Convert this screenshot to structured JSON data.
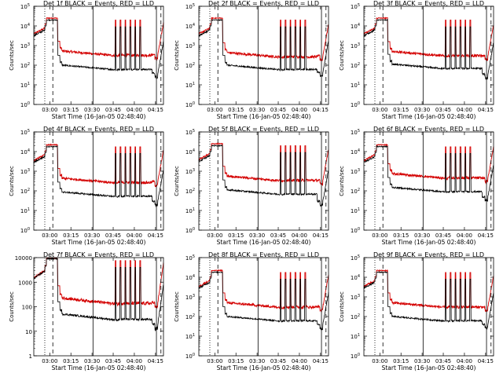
{
  "figure": {
    "title_template": "BLACK = Events, RED = LLD",
    "xlabel": "Start Time (16-Jan-05 02:48:40)",
    "ylabel": "Counts/sec",
    "x_ticks": [
      "03:00",
      "03:15",
      "03:30",
      "03:45",
      "04:00",
      "04:15"
    ],
    "colors": {
      "events": "#000000",
      "lld": "#d40000",
      "axes": "#000000",
      "background": "#ffffff"
    }
  },
  "chart_data": [
    {
      "type": "line",
      "title": "Det 1f BLACK = Events, RED = LLD",
      "xlabel": "Start Time (16-Jan-05 02:48:40)",
      "ylabel": "Counts/sec",
      "x_ticks": [
        "03:00",
        "03:15",
        "03:30",
        "03:45",
        "04:00",
        "04:15"
      ],
      "y_scale": "log",
      "ylim": [
        1,
        100000
      ],
      "y_ticks": [
        "10^0",
        "10^1",
        "10^2",
        "10^3",
        "10^4",
        "10^5"
      ],
      "series": [
        {
          "key": "events",
          "color": "#000000",
          "baseline": 80,
          "floor": 40,
          "peak": 20000
        },
        {
          "key": "lld",
          "color": "#d40000",
          "baseline": 420,
          "floor": 350,
          "peak": 25000
        }
      ]
    },
    {
      "type": "line",
      "title": "Det 2f BLACK = Events, RED = LLD",
      "xlabel": "Start Time (16-Jan-05 02:48:40)",
      "ylabel": "Counts/sec",
      "x_ticks": [
        "03:00",
        "03:15",
        "03:30",
        "03:45",
        "04:00",
        "04:15"
      ],
      "y_scale": "log",
      "ylim": [
        1,
        100000
      ],
      "y_ticks": [
        "10^0",
        "10^1",
        "10^2",
        "10^3",
        "10^4",
        "10^5"
      ],
      "series": [
        {
          "key": "events",
          "color": "#000000",
          "baseline": 80,
          "floor": 45,
          "peak": 20000
        },
        {
          "key": "lld",
          "color": "#d40000",
          "baseline": 350,
          "floor": 300,
          "peak": 25000
        }
      ]
    },
    {
      "type": "line",
      "title": "Det 3f BLACK = Events, RED = LLD",
      "xlabel": "Start Time (16-Jan-05 02:48:40)",
      "ylabel": "Counts/sec",
      "x_ticks": [
        "03:00",
        "03:15",
        "03:30",
        "03:45",
        "04:00",
        "04:15"
      ],
      "y_scale": "log",
      "ylim": [
        1,
        100000
      ],
      "y_ticks": [
        "10^0",
        "10^1",
        "10^2",
        "10^3",
        "10^4",
        "10^5"
      ],
      "series": [
        {
          "key": "events",
          "color": "#000000",
          "baseline": 90,
          "floor": 35,
          "peak": 20000
        },
        {
          "key": "lld",
          "color": "#d40000",
          "baseline": 400,
          "floor": 300,
          "peak": 25000
        }
      ]
    },
    {
      "type": "line",
      "title": "Det 4f BLACK = Events, RED = LLD",
      "xlabel": "Start Time (16-Jan-05 02:48:40)",
      "ylabel": "Counts/sec",
      "x_ticks": [
        "03:00",
        "03:15",
        "03:30",
        "03:45",
        "04:00",
        "04:15"
      ],
      "y_scale": "log",
      "ylim": [
        1,
        100000
      ],
      "y_ticks": [
        "10^0",
        "10^1",
        "10^2",
        "10^3",
        "10^4",
        "10^5"
      ],
      "series": [
        {
          "key": "events",
          "color": "#000000",
          "baseline": 70,
          "floor": 30,
          "peak": 18000
        },
        {
          "key": "lld",
          "color": "#d40000",
          "baseline": 350,
          "floor": 300,
          "peak": 22000
        }
      ]
    },
    {
      "type": "line",
      "title": "Det 5f BLACK = Events, RED = LLD",
      "xlabel": "Start Time (16-Jan-05 02:48:40)",
      "ylabel": "Counts/sec",
      "x_ticks": [
        "03:00",
        "03:15",
        "03:30",
        "03:45",
        "04:00",
        "04:15"
      ],
      "y_scale": "log",
      "ylim": [
        1,
        100000
      ],
      "y_ticks": [
        "10^0",
        "10^1",
        "10^2",
        "10^3",
        "10^4",
        "10^5"
      ],
      "series": [
        {
          "key": "events",
          "color": "#000000",
          "baseline": 90,
          "floor": 30,
          "peak": 20000
        },
        {
          "key": "lld",
          "color": "#d40000",
          "baseline": 450,
          "floor": 350,
          "peak": 25000
        }
      ]
    },
    {
      "type": "line",
      "title": "Det 6f BLACK = Events, RED = LLD",
      "xlabel": "Start Time (16-Jan-05 02:48:40)",
      "ylabel": "Counts/sec",
      "x_ticks": [
        "03:00",
        "03:15",
        "03:30",
        "03:45",
        "04:00",
        "04:15"
      ],
      "y_scale": "log",
      "ylim": [
        1,
        100000
      ],
      "y_ticks": [
        "10^0",
        "10^1",
        "10^2",
        "10^3",
        "10^4",
        "10^5"
      ],
      "series": [
        {
          "key": "events",
          "color": "#000000",
          "baseline": 120,
          "floor": 50,
          "peak": 18000
        },
        {
          "key": "lld",
          "color": "#d40000",
          "baseline": 600,
          "floor": 450,
          "peak": 22000
        }
      ]
    },
    {
      "type": "line",
      "title": "Det 7f BLACK = Events, RED = LLD",
      "xlabel": "Start Time (16-Jan-05 02:48:40)",
      "ylabel": "Counts/sec",
      "x_ticks": [
        "03:00",
        "03:15",
        "03:30",
        "03:45",
        "04:00",
        "04:15"
      ],
      "y_scale": "log",
      "ylim": [
        1,
        10000
      ],
      "y_ticks": [
        "1",
        "10",
        "100",
        "1000",
        "10000"
      ],
      "series": [
        {
          "key": "events",
          "color": "#000000",
          "baseline": 40,
          "floor": 20,
          "peak": 9000
        },
        {
          "key": "lld",
          "color": "#d40000",
          "baseline": 180,
          "floor": 150,
          "peak": 9500
        }
      ]
    },
    {
      "type": "line",
      "title": "Det 8f BLACK = Events, RED = LLD",
      "xlabel": "Start Time (16-Jan-05 02:48:40)",
      "ylabel": "Counts/sec",
      "x_ticks": [
        "03:00",
        "03:15",
        "03:30",
        "03:45",
        "04:00",
        "04:15"
      ],
      "y_scale": "log",
      "ylim": [
        1,
        100000
      ],
      "y_ticks": [
        "10^0",
        "10^1",
        "10^2",
        "10^3",
        "10^4",
        "10^5"
      ],
      "series": [
        {
          "key": "events",
          "color": "#000000",
          "baseline": 80,
          "floor": 40,
          "peak": 18000
        },
        {
          "key": "lld",
          "color": "#d40000",
          "baseline": 400,
          "floor": 320,
          "peak": 22000
        }
      ]
    },
    {
      "type": "line",
      "title": "Det 9f BLACK = Events, RED = LLD",
      "xlabel": "Start Time (16-Jan-05 02:48:40)",
      "ylabel": "Counts/sec",
      "x_ticks": [
        "03:00",
        "03:15",
        "03:30",
        "03:45",
        "04:00",
        "04:15"
      ],
      "y_scale": "log",
      "ylim": [
        1,
        100000
      ],
      "y_ticks": [
        "10^0",
        "10^1",
        "10^2",
        "10^3",
        "10^4",
        "10^5"
      ],
      "series": [
        {
          "key": "events",
          "color": "#000000",
          "baseline": 80,
          "floor": 40,
          "peak": 18000
        },
        {
          "key": "lld",
          "color": "#d40000",
          "baseline": 400,
          "floor": 300,
          "peak": 22000
        }
      ]
    }
  ]
}
